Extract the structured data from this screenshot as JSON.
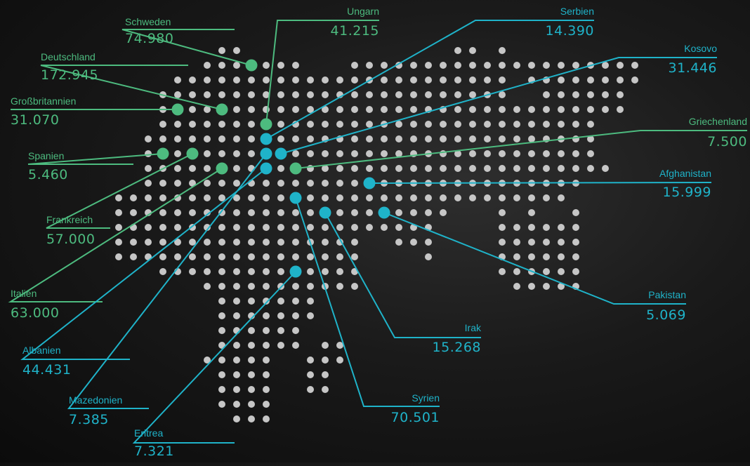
{
  "colors": {
    "dot": "#c6c6c6",
    "green": "#4dbb7f",
    "blue": "#1fb3c9"
  },
  "entries": [
    {
      "id": "schweden",
      "name": "Schweden",
      "value": "74.980",
      "color": "green"
    },
    {
      "id": "deutschland",
      "name": "Deutschland",
      "value": "172.945",
      "color": "green"
    },
    {
      "id": "grossbritannien",
      "name": "Großbritannien",
      "value": "31.070",
      "color": "green"
    },
    {
      "id": "spanien",
      "name": "Spanien",
      "value": "5.460",
      "color": "green"
    },
    {
      "id": "frankreich",
      "name": "Frankreich",
      "value": "57.000",
      "color": "green"
    },
    {
      "id": "italien",
      "name": "Italien",
      "value": "63.000",
      "color": "green"
    },
    {
      "id": "albanien",
      "name": "Albanien",
      "value": "44.431",
      "color": "blue"
    },
    {
      "id": "mazedonien",
      "name": "Mazedonien",
      "value": "7.385",
      "color": "blue"
    },
    {
      "id": "eritrea",
      "name": "Eritrea",
      "value": "7.321",
      "color": "blue"
    },
    {
      "id": "ungarn",
      "name": "Ungarn",
      "value": "41.215",
      "color": "green"
    },
    {
      "id": "serbien",
      "name": "Serbien",
      "value": "14.390",
      "color": "blue"
    },
    {
      "id": "kosovo",
      "name": "Kosovo",
      "value": "31.446",
      "color": "blue"
    },
    {
      "id": "griechenland",
      "name": "Griechenland",
      "value": "7.500",
      "color": "green"
    },
    {
      "id": "afghanistan",
      "name": "Afghanistan",
      "value": "15.999",
      "color": "blue"
    },
    {
      "id": "pakistan",
      "name": "Pakistan",
      "value": "5.069",
      "color": "blue"
    },
    {
      "id": "irak",
      "name": "Irak",
      "value": "15.268",
      "color": "blue"
    },
    {
      "id": "syrien",
      "name": "Syrien",
      "value": "70.501",
      "color": "blue"
    }
  ]
}
